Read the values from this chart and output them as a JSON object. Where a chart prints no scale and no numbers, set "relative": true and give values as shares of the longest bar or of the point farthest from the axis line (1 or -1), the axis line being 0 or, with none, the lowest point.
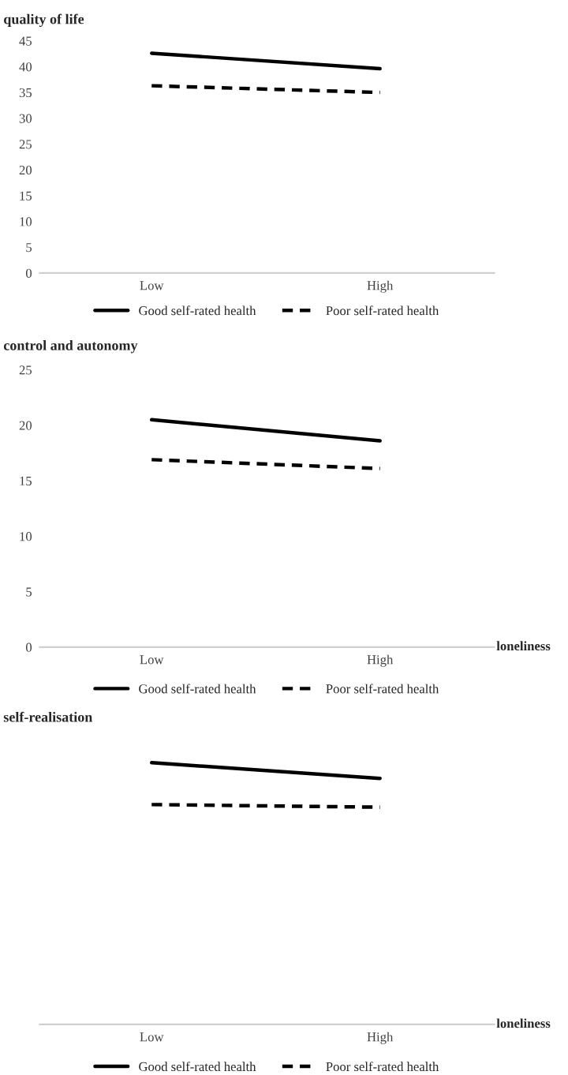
{
  "chart_data": [
    {
      "type": "line",
      "ylabel": "quality of life",
      "categories": [
        "Low",
        "High"
      ],
      "ylim": [
        0,
        45
      ],
      "yticks": [
        0,
        5,
        10,
        15,
        20,
        25,
        30,
        35,
        40,
        45
      ],
      "legend": "bottom",
      "grid": false,
      "series": [
        {
          "name": "Good self-rated health",
          "color": "#000000",
          "line_style": "solid",
          "values": [
            42.6,
            39.6
          ]
        },
        {
          "name": "Poor self-rated health",
          "color": "#000000",
          "line_style": "dashed",
          "values": [
            36.3,
            35.0
          ]
        }
      ]
    },
    {
      "type": "line",
      "ylabel": "control and autonomy",
      "xlabel": "loneliness",
      "categories": [
        "Low",
        "High"
      ],
      "ylim": [
        0,
        25
      ],
      "yticks": [
        0,
        5,
        10,
        15,
        20,
        25
      ],
      "legend": "bottom",
      "grid": false,
      "series": [
        {
          "name": "Good self-rated health",
          "color": "#000000",
          "line_style": "solid",
          "values": [
            20.5,
            18.6
          ]
        },
        {
          "name": "Poor self-rated health",
          "color": "#000000",
          "line_style": "dashed",
          "values": [
            16.9,
            16.1
          ]
        }
      ]
    },
    {
      "type": "line",
      "ylabel": "self-realisation",
      "xlabel": "loneliness",
      "categories": [
        "Low",
        "High"
      ],
      "relative": true,
      "legend": "bottom",
      "grid": false,
      "series": [
        {
          "name": "Good self-rated health",
          "color": "#000000",
          "line_style": "solid",
          "values": [
            1,
            0.94
          ]
        },
        {
          "name": "Poor self-rated health",
          "color": "#000000",
          "line_style": "dashed",
          "values": [
            0.84,
            0.83
          ]
        }
      ]
    }
  ]
}
